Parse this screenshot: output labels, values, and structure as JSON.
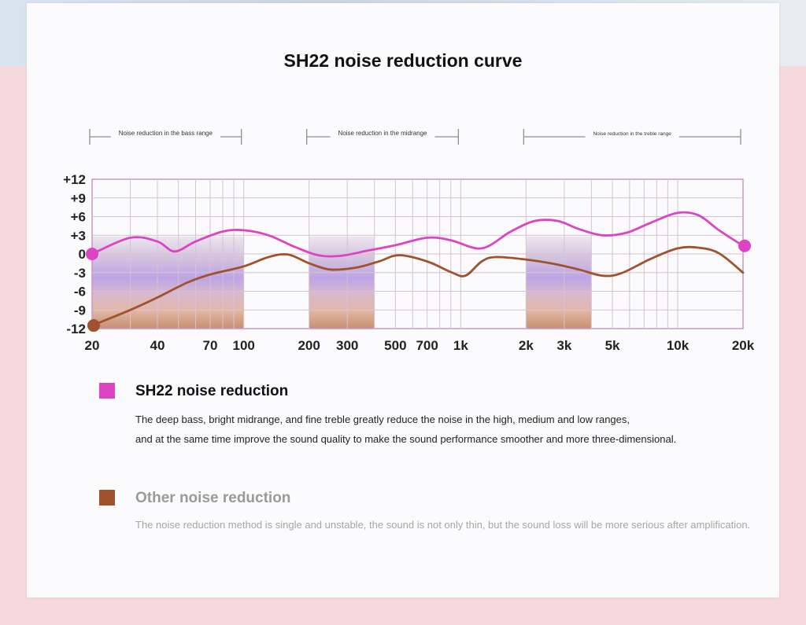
{
  "title": "SH22 noise reduction curve",
  "colors": {
    "sh22": "#dd44c3",
    "other": "#a0522d",
    "grid": "#d7c2d2",
    "frame": "#c996c8",
    "highlight": "#e6d8e6"
  },
  "chart_data": {
    "type": "line",
    "title": "SH22 noise reduction curve",
    "xlabel": "",
    "ylabel": "",
    "x_scale": "log",
    "xlim": [
      20,
      20000
    ],
    "ylim": [
      -12,
      12
    ],
    "grid": true,
    "x_ticks": [
      {
        "value": 20,
        "label": "20"
      },
      {
        "value": 40,
        "label": "40"
      },
      {
        "value": 70,
        "label": "70"
      },
      {
        "value": 100,
        "label": "100"
      },
      {
        "value": 200,
        "label": "200"
      },
      {
        "value": 300,
        "label": "300"
      },
      {
        "value": 500,
        "label": "500"
      },
      {
        "value": 700,
        "label": "700"
      },
      {
        "value": 1000,
        "label": "1k"
      },
      {
        "value": 2000,
        "label": "2k"
      },
      {
        "value": 3000,
        "label": "3k"
      },
      {
        "value": 5000,
        "label": "5k"
      },
      {
        "value": 10000,
        "label": "10k"
      },
      {
        "value": 20000,
        "label": "20k"
      }
    ],
    "y_ticks": [
      {
        "value": 12,
        "label": "+12"
      },
      {
        "value": 9,
        "label": "+9"
      },
      {
        "value": 6,
        "label": "+6"
      },
      {
        "value": 3,
        "label": "+3"
      },
      {
        "value": 0,
        "label": "0"
      },
      {
        "value": -3,
        "label": "-3"
      },
      {
        "value": -6,
        "label": "-6"
      },
      {
        "value": -9,
        "label": "-9"
      },
      {
        "value": -12,
        "label": "-12"
      }
    ],
    "ranges": [
      {
        "label": "Noise reduction in the bass range",
        "x_start": 20,
        "x_end": 100
      },
      {
        "label": "Noise reduction in the midrange",
        "x_start": 200,
        "x_end": 1000
      },
      {
        "label": "Noise reduction in the treble range",
        "x_start": 2000,
        "x_end": 20000
      }
    ],
    "highlighted_bands": [
      {
        "x_start": 20,
        "x_end": 100
      },
      {
        "x_start": 200,
        "x_end": 400
      },
      {
        "x_start": 2000,
        "x_end": 4000
      }
    ],
    "series": [
      {
        "name": "SH22 noise reduction",
        "color": "#dd44c3",
        "points": [
          [
            20,
            0
          ],
          [
            30,
            2.6
          ],
          [
            40,
            2.0
          ],
          [
            48,
            0.4
          ],
          [
            60,
            2.0
          ],
          [
            80,
            3.6
          ],
          [
            100,
            3.8
          ],
          [
            130,
            3.0
          ],
          [
            170,
            1.2
          ],
          [
            220,
            -0.2
          ],
          [
            280,
            -0.3
          ],
          [
            380,
            0.6
          ],
          [
            500,
            1.4
          ],
          [
            700,
            2.6
          ],
          [
            900,
            2.2
          ],
          [
            1250,
            0.9
          ],
          [
            1700,
            3.6
          ],
          [
            2200,
            5.3
          ],
          [
            2800,
            5.3
          ],
          [
            3500,
            4.0
          ],
          [
            4500,
            3.0
          ],
          [
            5800,
            3.4
          ],
          [
            7500,
            5.0
          ],
          [
            10000,
            6.6
          ],
          [
            12500,
            6.2
          ],
          [
            15500,
            3.8
          ],
          [
            20000,
            1.3
          ]
        ],
        "end_markers": true
      },
      {
        "name": "Other noise reduction",
        "color": "#a0522d",
        "points": [
          [
            20,
            -11.5
          ],
          [
            30,
            -9.0
          ],
          [
            40,
            -7.0
          ],
          [
            55,
            -4.6
          ],
          [
            70,
            -3.3
          ],
          [
            100,
            -2.0
          ],
          [
            130,
            -0.5
          ],
          [
            160,
            -0.1
          ],
          [
            200,
            -1.5
          ],
          [
            250,
            -2.5
          ],
          [
            330,
            -2.2
          ],
          [
            420,
            -1.2
          ],
          [
            520,
            -0.2
          ],
          [
            700,
            -1.2
          ],
          [
            900,
            -2.9
          ],
          [
            1050,
            -3.5
          ],
          [
            1250,
            -1.2
          ],
          [
            1450,
            -0.5
          ],
          [
            2000,
            -0.9
          ],
          [
            2700,
            -1.6
          ],
          [
            3500,
            -2.5
          ],
          [
            4500,
            -3.5
          ],
          [
            5500,
            -3.1
          ],
          [
            7500,
            -0.8
          ],
          [
            10000,
            0.9
          ],
          [
            12500,
            1.0
          ],
          [
            15500,
            0.1
          ],
          [
            20000,
            -3.0
          ]
        ],
        "end_markers": true,
        "end_marker_index": 0
      }
    ]
  },
  "legend": [
    {
      "title": "SH22 noise reduction",
      "color": "#dd44c3",
      "text_color": "#111111",
      "desc_color": "#222222",
      "lines": [
        "The deep bass, bright midrange, and fine treble greatly reduce the noise in the high, medium and low ranges,",
        "and at the same time improve the sound quality to make the sound performance smoother and more three-dimensional."
      ]
    },
    {
      "title": "Other noise reduction",
      "color": "#a0522d",
      "text_color": "#9a9a9a",
      "desc_color": "#a6a6a6",
      "lines": [
        "The noise reduction method is single and unstable, the sound is not only thin, but the sound loss will be more serious after amplification."
      ]
    }
  ]
}
